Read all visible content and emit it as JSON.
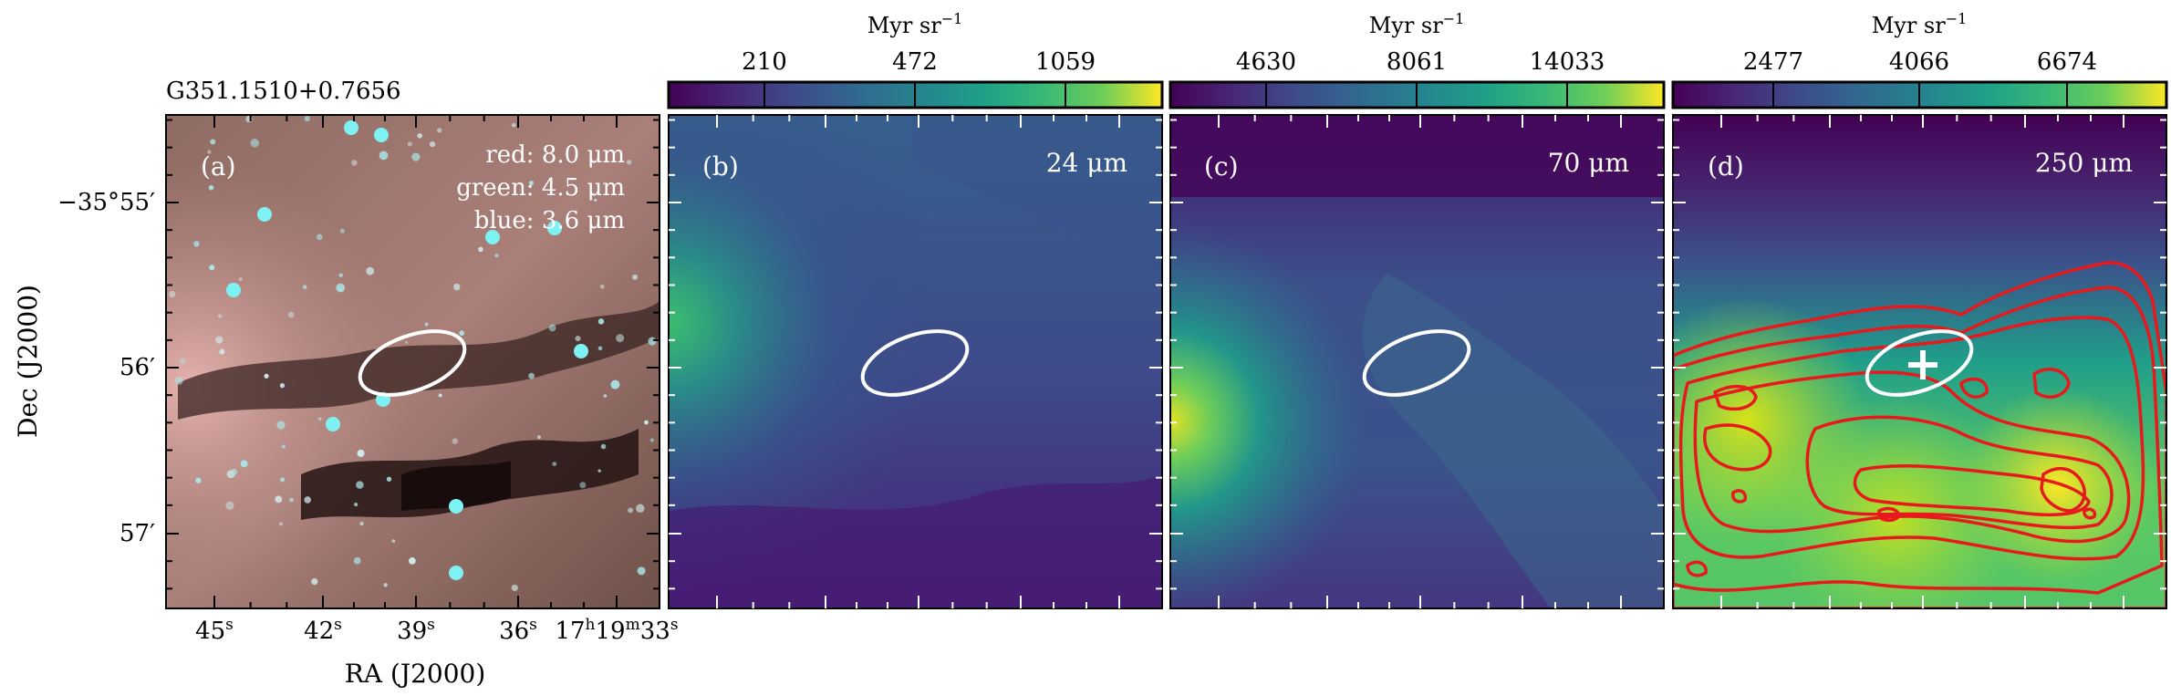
{
  "source_name": "G351.1510+0.7656",
  "axes": {
    "dec_label": "Dec (J2000)",
    "ra_label": "RA (J2000)",
    "dec_ticks": [
      {
        "deg": "−35°55′",
        "min": ""
      },
      {
        "deg": "",
        "min": "56′"
      },
      {
        "deg": "",
        "min": "57′"
      }
    ],
    "ra_ticks": [
      {
        "h": "",
        "m": "",
        "s": "45",
        "ss": "s"
      },
      {
        "h": "",
        "m": "",
        "s": "42",
        "ss": "s"
      },
      {
        "h": "",
        "m": "",
        "s": "39",
        "ss": "s"
      },
      {
        "h": "",
        "m": "",
        "s": "36",
        "ss": "s"
      },
      {
        "h": "17",
        "m": "19",
        "s": "33",
        "ss": "s"
      }
    ]
  },
  "panels": [
    {
      "id": "a",
      "label": "(a)",
      "legend": [
        "red: 8.0 μm",
        "green: 4.5 μm",
        "blue: 3.6 μm"
      ],
      "image": "rgb composite",
      "colorbar": null
    },
    {
      "id": "b",
      "label": "(b)",
      "wavelength": "24 μm",
      "colormap": "viridis",
      "colorbar": {
        "title": "Myr sr",
        "exponent": "−1",
        "ticks": [
          "210",
          "472",
          "1059"
        ]
      }
    },
    {
      "id": "c",
      "label": "(c)",
      "wavelength": "70 μm",
      "colormap": "viridis",
      "colorbar": {
        "title": "Myr sr",
        "exponent": "−1",
        "ticks": [
          "4630",
          "8061",
          "14033"
        ]
      }
    },
    {
      "id": "d",
      "label": "(d)",
      "wavelength": "250 μm",
      "colormap": "viridis",
      "contours": "red",
      "marker": "cross",
      "colorbar": {
        "title": "Myr sr",
        "exponent": "−1",
        "ticks": [
          "2477",
          "4066",
          "6674"
        ]
      }
    }
  ],
  "colors": {
    "ellipse": "#ffffff",
    "contour": "#e8191c",
    "marker": "#ffffff"
  }
}
